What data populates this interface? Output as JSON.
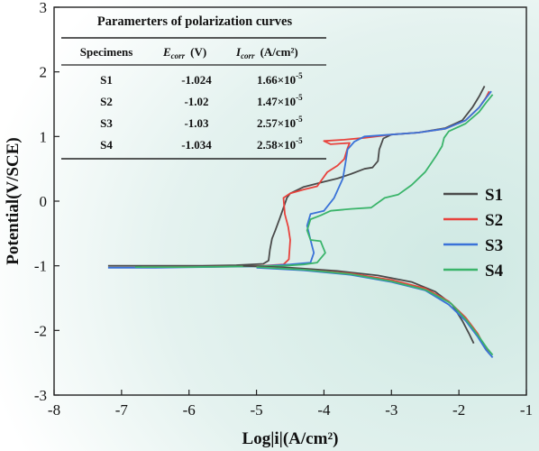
{
  "chart_data": {
    "type": "line",
    "xlabel": "Log|i|(A/cm²)",
    "ylabel": "Potential(V/SCE)",
    "xlim": [
      -8,
      -1
    ],
    "ylim": [
      -3,
      3
    ],
    "xticks": [
      -8,
      -7,
      -6,
      -5,
      -4,
      -3,
      -2,
      -1
    ],
    "yticks": [
      -3,
      -2,
      -1,
      0,
      1,
      2,
      3
    ],
    "grid": false,
    "legend": "right",
    "background": [
      "#ffffff",
      "#d7ece8"
    ],
    "series": [
      {
        "name": "S1",
        "color": "#4a4a4a",
        "points": [
          [
            -7.2,
            -1.0
          ],
          [
            -6.5,
            -1.0
          ],
          [
            -5.8,
            -1.0
          ],
          [
            -5.3,
            -0.99
          ],
          [
            -4.9,
            -0.97
          ],
          [
            -4.82,
            -0.92
          ],
          [
            -4.8,
            -0.75
          ],
          [
            -4.77,
            -0.58
          ],
          [
            -4.72,
            -0.45
          ],
          [
            -4.65,
            -0.25
          ],
          [
            -4.55,
            0.05
          ],
          [
            -4.5,
            0.12
          ],
          [
            -4.3,
            0.22
          ],
          [
            -4.0,
            0.3
          ],
          [
            -3.8,
            0.35
          ],
          [
            -3.6,
            0.42
          ],
          [
            -3.4,
            0.5
          ],
          [
            -3.28,
            0.52
          ],
          [
            -3.2,
            0.62
          ],
          [
            -3.18,
            0.8
          ],
          [
            -3.12,
            0.97
          ],
          [
            -3.0,
            1.03
          ],
          [
            -2.6,
            1.06
          ],
          [
            -2.2,
            1.13
          ],
          [
            -1.95,
            1.25
          ],
          [
            -1.8,
            1.45
          ],
          [
            -1.7,
            1.62
          ],
          [
            -1.62,
            1.78
          ]
        ]
      },
      {
        "name": "S2",
        "color": "#e8423c",
        "points": [
          [
            -6.7,
            -1.02
          ],
          [
            -6.0,
            -1.02
          ],
          [
            -5.3,
            -1.01
          ],
          [
            -4.9,
            -1.0
          ],
          [
            -4.6,
            -0.98
          ],
          [
            -4.52,
            -0.9
          ],
          [
            -4.5,
            -0.6
          ],
          [
            -4.53,
            -0.4
          ],
          [
            -4.58,
            -0.2
          ],
          [
            -4.6,
            0.05
          ],
          [
            -4.5,
            0.12
          ],
          [
            -4.3,
            0.18
          ],
          [
            -4.1,
            0.23
          ],
          [
            -3.95,
            0.45
          ],
          [
            -3.8,
            0.55
          ],
          [
            -3.7,
            0.65
          ],
          [
            -3.65,
            0.82
          ],
          [
            -3.62,
            0.9
          ],
          [
            -3.9,
            0.88
          ],
          [
            -4.0,
            0.93
          ],
          [
            -3.7,
            0.95
          ],
          [
            -3.4,
            0.98
          ],
          [
            -3.0,
            1.03
          ],
          [
            -2.6,
            1.06
          ],
          [
            -2.2,
            1.12
          ],
          [
            -1.9,
            1.25
          ],
          [
            -1.7,
            1.45
          ],
          [
            -1.6,
            1.6
          ],
          [
            -1.55,
            1.7
          ]
        ]
      },
      {
        "name": "S3",
        "color": "#3a72d8",
        "points": [
          [
            -7.2,
            -1.03
          ],
          [
            -6.5,
            -1.03
          ],
          [
            -5.8,
            -1.02
          ],
          [
            -5.0,
            -1.01
          ],
          [
            -4.5,
            -0.98
          ],
          [
            -4.2,
            -0.95
          ],
          [
            -4.15,
            -0.8
          ],
          [
            -4.2,
            -0.6
          ],
          [
            -4.25,
            -0.38
          ],
          [
            -4.2,
            -0.2
          ],
          [
            -4.0,
            -0.15
          ],
          [
            -3.85,
            0.05
          ],
          [
            -3.72,
            0.35
          ],
          [
            -3.68,
            0.6
          ],
          [
            -3.65,
            0.8
          ],
          [
            -3.55,
            0.92
          ],
          [
            -3.4,
            1.0
          ],
          [
            -3.0,
            1.03
          ],
          [
            -2.6,
            1.06
          ],
          [
            -2.2,
            1.12
          ],
          [
            -1.9,
            1.25
          ],
          [
            -1.7,
            1.45
          ],
          [
            -1.58,
            1.62
          ],
          [
            -1.52,
            1.7
          ]
        ]
      },
      {
        "name": "S4",
        "color": "#3ab46a",
        "points": [
          [
            -6.8,
            -1.02
          ],
          [
            -6.0,
            -1.02
          ],
          [
            -5.2,
            -1.01
          ],
          [
            -4.6,
            -1.0
          ],
          [
            -4.3,
            -0.98
          ],
          [
            -4.1,
            -0.95
          ],
          [
            -3.98,
            -0.8
          ],
          [
            -4.05,
            -0.62
          ],
          [
            -4.2,
            -0.6
          ],
          [
            -4.25,
            -0.45
          ],
          [
            -4.2,
            -0.28
          ],
          [
            -4.05,
            -0.22
          ],
          [
            -3.9,
            -0.15
          ],
          [
            -3.6,
            -0.12
          ],
          [
            -3.3,
            -0.1
          ],
          [
            -3.1,
            0.05
          ],
          [
            -2.9,
            0.1
          ],
          [
            -2.7,
            0.25
          ],
          [
            -2.5,
            0.45
          ],
          [
            -2.35,
            0.68
          ],
          [
            -2.25,
            0.85
          ],
          [
            -2.22,
            0.98
          ],
          [
            -2.15,
            1.08
          ],
          [
            -1.9,
            1.2
          ],
          [
            -1.7,
            1.38
          ],
          [
            -1.6,
            1.52
          ],
          [
            -1.5,
            1.65
          ]
        ]
      },
      {
        "name": "S1",
        "color": "#4a4a4a",
        "legend": false,
        "points": [
          [
            -5.2,
            -1.0
          ],
          [
            -4.5,
            -1.03
          ],
          [
            -3.8,
            -1.08
          ],
          [
            -3.2,
            -1.15
          ],
          [
            -2.7,
            -1.25
          ],
          [
            -2.35,
            -1.4
          ],
          [
            -2.1,
            -1.6
          ],
          [
            -1.95,
            -1.85
          ],
          [
            -1.85,
            -2.05
          ],
          [
            -1.78,
            -2.2
          ]
        ]
      },
      {
        "name": "S2",
        "color": "#e8423c",
        "legend": false,
        "points": [
          [
            -5.0,
            -1.02
          ],
          [
            -4.3,
            -1.06
          ],
          [
            -3.6,
            -1.12
          ],
          [
            -3.0,
            -1.22
          ],
          [
            -2.5,
            -1.35
          ],
          [
            -2.15,
            -1.55
          ],
          [
            -1.9,
            -1.8
          ],
          [
            -1.72,
            -2.05
          ],
          [
            -1.62,
            -2.25
          ],
          [
            -1.55,
            -2.36
          ]
        ]
      },
      {
        "name": "S3",
        "color": "#3a72d8",
        "legend": false,
        "points": [
          [
            -5.0,
            -1.03
          ],
          [
            -4.3,
            -1.07
          ],
          [
            -3.6,
            -1.14
          ],
          [
            -3.0,
            -1.25
          ],
          [
            -2.5,
            -1.38
          ],
          [
            -2.15,
            -1.6
          ],
          [
            -1.9,
            -1.85
          ],
          [
            -1.72,
            -2.1
          ],
          [
            -1.6,
            -2.3
          ],
          [
            -1.5,
            -2.42
          ]
        ]
      },
      {
        "name": "S4",
        "color": "#3ab46a",
        "legend": false,
        "points": [
          [
            -5.0,
            -1.02
          ],
          [
            -4.3,
            -1.06
          ],
          [
            -3.6,
            -1.13
          ],
          [
            -3.0,
            -1.24
          ],
          [
            -2.5,
            -1.37
          ],
          [
            -2.12,
            -1.58
          ],
          [
            -1.88,
            -1.85
          ],
          [
            -1.7,
            -2.1
          ],
          [
            -1.58,
            -2.28
          ],
          [
            -1.5,
            -2.38
          ]
        ]
      }
    ],
    "table": {
      "title": "Paramerters of polarization curves",
      "headers": [
        "Specimens",
        "Ecorr",
        "(V)",
        "Icorr",
        "(A/cm²)"
      ],
      "rows": [
        {
          "specimen": "S1",
          "ecorr": "-1.024",
          "icorr_mant": "1.66×10",
          "icorr_exp": "-5"
        },
        {
          "specimen": "S2",
          "ecorr": "-1.02",
          "icorr_mant": "1.47×10",
          "icorr_exp": "-5"
        },
        {
          "specimen": "S3",
          "ecorr": "-1.03",
          "icorr_mant": "2.57×10",
          "icorr_exp": "-5"
        },
        {
          "specimen": "S4",
          "ecorr": "-1.034",
          "icorr_mant": "2.58×10",
          "icorr_exp": "-5"
        }
      ]
    }
  }
}
